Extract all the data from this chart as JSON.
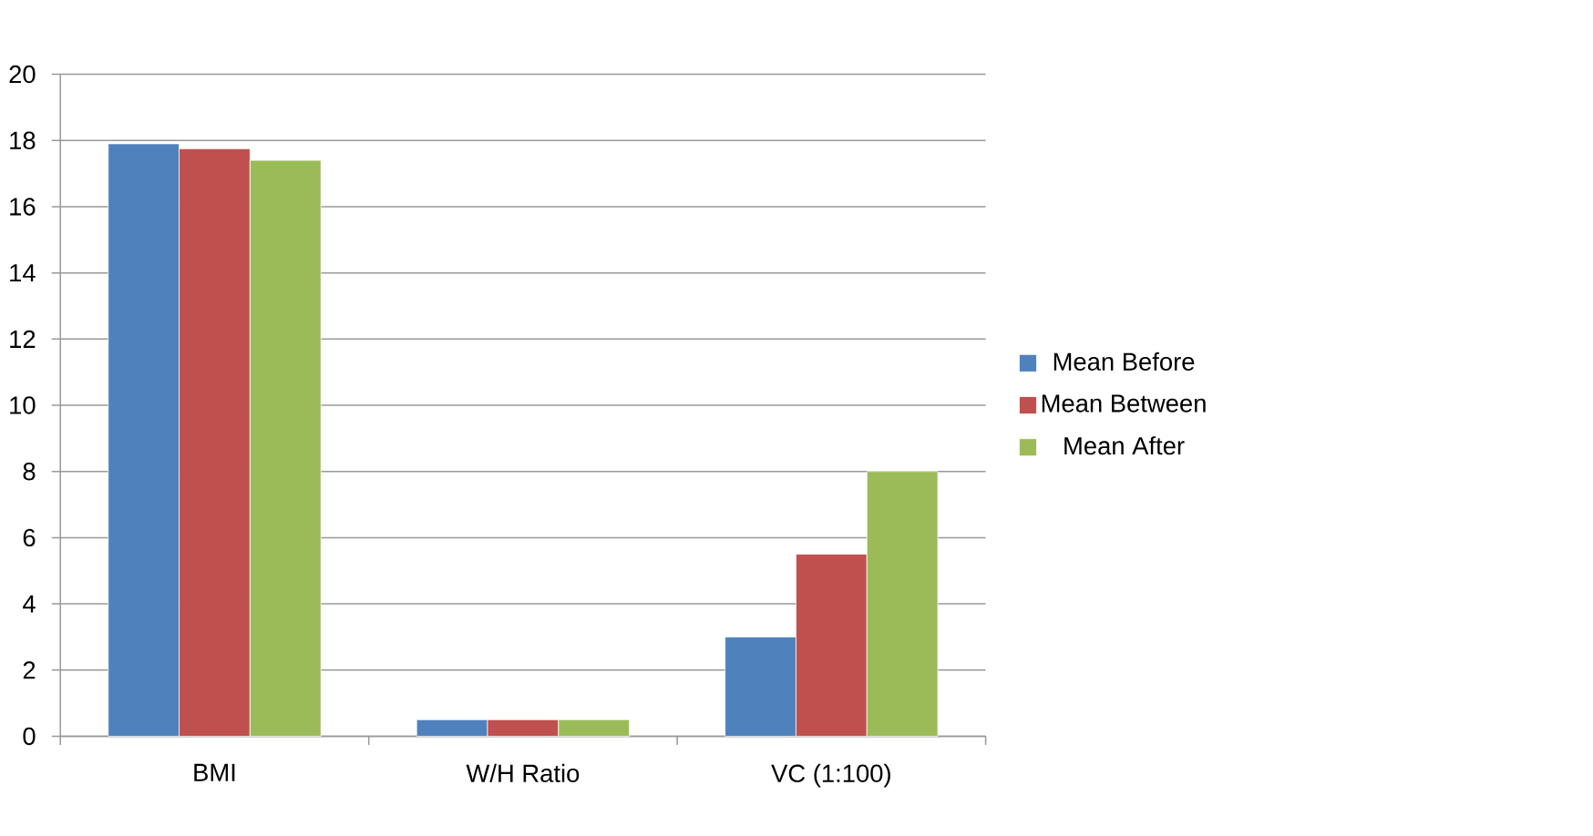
{
  "chart_data": {
    "type": "bar",
    "categories": [
      "BMI",
      "W/H Ratio",
      "VC (1:100)"
    ],
    "series": [
      {
        "name": "Mean Before",
        "color": "#4f81bd",
        "values": [
          17.9,
          0.5,
          3
        ]
      },
      {
        "name": "Mean Between",
        "color": "#c0504d",
        "values": [
          17.75,
          0.5,
          5.5
        ]
      },
      {
        "name": "Mean After",
        "color": "#9bbb59",
        "values": [
          17.4,
          0.5,
          8
        ]
      }
    ],
    "ylim": [
      0,
      20
    ],
    "yticks": [
      0,
      2,
      4,
      6,
      8,
      10,
      12,
      14,
      16,
      18,
      20
    ],
    "grid": "y",
    "legend": "right"
  }
}
